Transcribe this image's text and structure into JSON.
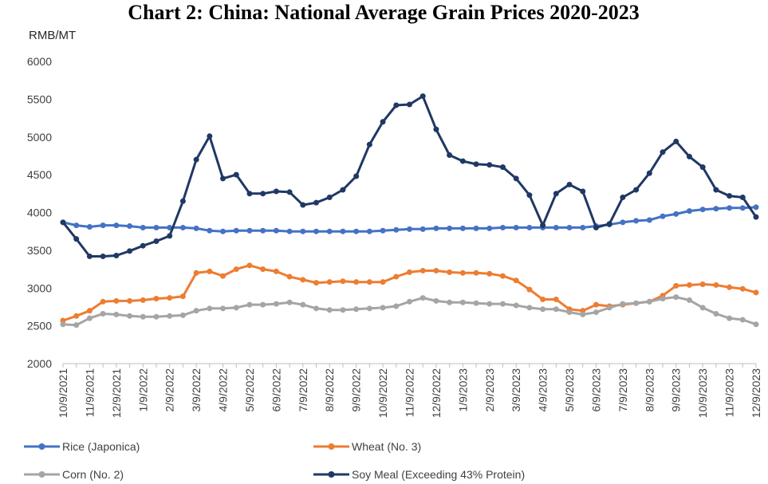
{
  "chart_data": {
    "type": "line",
    "title": "Chart 2: China: National Average Grain Prices 2020-2023",
    "y_label": "RMB/MT",
    "categories": [
      "10/9/2021",
      null,
      "11/9/2021",
      null,
      "12/9/2021",
      null,
      "1/9/2022",
      null,
      "2/9/2022",
      null,
      "3/9/2022",
      null,
      "4/9/2022",
      null,
      "5/9/2022",
      null,
      "6/9/2022",
      null,
      "7/9/2022",
      null,
      "8/9/2022",
      null,
      "9/9/2022",
      null,
      "10/9/2022",
      null,
      "11/9/2022",
      null,
      "12/9/2022",
      null,
      "1/9/2023",
      null,
      "2/9/2023",
      null,
      "3/9/2023",
      null,
      "4/9/2023",
      null,
      "5/9/2023",
      null,
      "6/9/2023",
      null,
      "7/9/2023",
      null,
      "8/9/2023",
      null,
      "9/9/2023",
      null,
      "10/9/2023",
      null,
      "11/9/2023",
      null,
      "12/9/2023"
    ],
    "series": [
      {
        "name": "Rice (Japonica)",
        "color": "#4472c4",
        "values": [
          3870,
          3830,
          3810,
          3830,
          3830,
          3820,
          3800,
          3800,
          3800,
          3800,
          3790,
          3760,
          3750,
          3760,
          3760,
          3760,
          3760,
          3750,
          3750,
          3750,
          3750,
          3750,
          3750,
          3750,
          3760,
          3770,
          3780,
          3780,
          3790,
          3790,
          3790,
          3790,
          3790,
          3800,
          3800,
          3800,
          3800,
          3800,
          3800,
          3800,
          3820,
          3840,
          3870,
          3890,
          3900,
          3950,
          3980,
          4020,
          4040,
          4050,
          4060,
          4060,
          4070
        ]
      },
      {
        "name": "Wheat (No. 3)",
        "color": "#ed7d31",
        "values": [
          2570,
          2630,
          2700,
          2820,
          2830,
          2830,
          2840,
          2860,
          2870,
          2890,
          3200,
          3220,
          3160,
          3250,
          3300,
          3250,
          3220,
          3150,
          3110,
          3070,
          3080,
          3090,
          3080,
          3080,
          3080,
          3150,
          3210,
          3230,
          3230,
          3210,
          3200,
          3200,
          3190,
          3160,
          3100,
          2980,
          2850,
          2850,
          2720,
          2700,
          2780,
          2760,
          2780,
          2800,
          2820,
          2900,
          3030,
          3040,
          3050,
          3040,
          3010,
          2990,
          2940
        ]
      },
      {
        "name": "Corn (No. 2)",
        "color": "#a5a5a5",
        "values": [
          2520,
          2510,
          2600,
          2660,
          2650,
          2630,
          2620,
          2620,
          2630,
          2640,
          2700,
          2730,
          2730,
          2740,
          2780,
          2780,
          2790,
          2810,
          2780,
          2730,
          2710,
          2710,
          2720,
          2730,
          2740,
          2760,
          2820,
          2870,
          2830,
          2810,
          2810,
          2800,
          2790,
          2790,
          2770,
          2740,
          2720,
          2720,
          2680,
          2650,
          2680,
          2740,
          2790,
          2800,
          2820,
          2860,
          2880,
          2840,
          2740,
          2660,
          2600,
          2580,
          2520
        ]
      },
      {
        "name": "Soy Meal (Exceeding 43% Protein)",
        "color": "#203864",
        "values": [
          3870,
          3650,
          3420,
          3420,
          3430,
          3490,
          3560,
          3620,
          3690,
          4150,
          4700,
          5010,
          4450,
          4500,
          4250,
          4250,
          4280,
          4270,
          4100,
          4130,
          4200,
          4300,
          4480,
          4900,
          5200,
          5420,
          5430,
          5540,
          5100,
          4760,
          4680,
          4640,
          4630,
          4600,
          4450,
          4230,
          3830,
          4250,
          4370,
          4280,
          3800,
          3850,
          4200,
          4300,
          4520,
          4800,
          4940,
          4740,
          4600,
          4300,
          4220,
          4200,
          3940
        ]
      }
    ],
    "ylim": [
      2000,
      6000
    ],
    "yticks": [
      2000,
      2500,
      3000,
      3500,
      4000,
      4500,
      5000,
      5500,
      6000
    ],
    "grid": false
  }
}
